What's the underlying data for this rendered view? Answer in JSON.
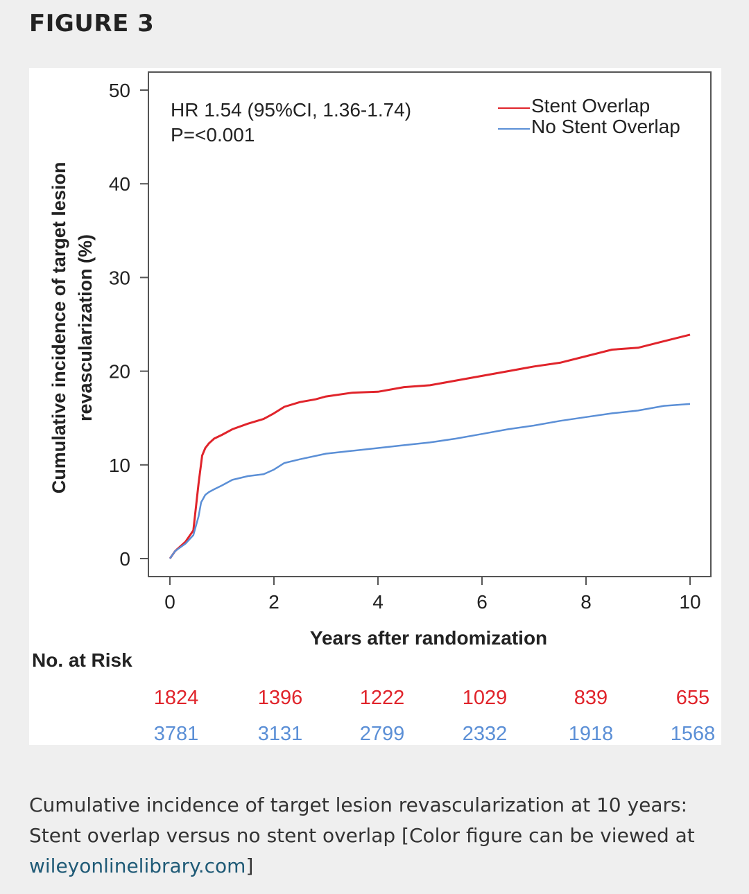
{
  "figure": {
    "title": "FIGURE 3"
  },
  "caption": {
    "text": "Cumulative incidence of target lesion revascularization at 10 years: Stent overlap versus no stent overlap [Color figure can be viewed at ",
    "link": "wileyonlinelibrary.com",
    "suffix": "]"
  },
  "chart_data": {
    "type": "line",
    "xlabel": "Years after randomization",
    "ylabel_lines": [
      "Cumulative incidence of target lesion",
      "revascularization (%)"
    ],
    "xlim": [
      0,
      10
    ],
    "ylim": [
      0,
      50
    ],
    "x_ticks": [
      "0",
      "2",
      "4",
      "6",
      "8",
      "10"
    ],
    "y_ticks": [
      "0",
      "10",
      "20",
      "30",
      "40",
      "50"
    ],
    "annotation_lines": [
      "HR 1.54 (95%CI, 1.36-1.74)",
      "P=<0.001"
    ],
    "legend_position": "top-right",
    "series": [
      {
        "name": "Stent Overlap",
        "color": "#e0242b",
        "x": [
          0,
          0.1,
          0.3,
          0.45,
          0.55,
          0.62,
          0.68,
          0.75,
          0.85,
          1.0,
          1.2,
          1.5,
          1.8,
          2.0,
          2.2,
          2.5,
          2.8,
          3.0,
          3.5,
          4.0,
          4.5,
          5.0,
          5.5,
          6.0,
          6.5,
          7.0,
          7.5,
          8.0,
          8.5,
          9.0,
          9.5,
          10.0
        ],
        "y": [
          0,
          0.8,
          1.8,
          3.0,
          8.0,
          11.0,
          11.8,
          12.3,
          12.8,
          13.2,
          13.8,
          14.4,
          14.9,
          15.5,
          16.2,
          16.7,
          17.0,
          17.3,
          17.7,
          17.8,
          18.3,
          18.5,
          19.0,
          19.5,
          20.0,
          20.5,
          20.9,
          21.6,
          22.3,
          22.5,
          23.2,
          23.9
        ]
      },
      {
        "name": "No Stent Overlap",
        "color": "#5b8fd6",
        "x": [
          0,
          0.1,
          0.3,
          0.45,
          0.55,
          0.6,
          0.68,
          0.75,
          0.85,
          1.0,
          1.2,
          1.5,
          1.8,
          2.0,
          2.2,
          2.5,
          3.0,
          3.5,
          4.0,
          4.5,
          5.0,
          5.5,
          6.0,
          6.5,
          7.0,
          7.5,
          8.0,
          8.5,
          9.0,
          9.5,
          10.0
        ],
        "y": [
          0,
          0.8,
          1.6,
          2.5,
          4.5,
          6.0,
          6.8,
          7.1,
          7.4,
          7.8,
          8.4,
          8.8,
          9.0,
          9.5,
          10.2,
          10.6,
          11.2,
          11.5,
          11.8,
          12.1,
          12.4,
          12.8,
          13.3,
          13.8,
          14.2,
          14.7,
          15.1,
          15.5,
          15.8,
          16.3,
          16.5
        ]
      }
    ],
    "risk_table": {
      "title": "No. at Risk",
      "rows": [
        {
          "name": "Stent Overlap",
          "color": "#e0242b",
          "values": [
            "1824",
            "1396",
            "1222",
            "1029",
            "839",
            "655"
          ]
        },
        {
          "name": "No Stent Overlap",
          "color": "#5b8fd6",
          "values": [
            "3781",
            "3131",
            "2799",
            "2332",
            "1918",
            "1568"
          ]
        }
      ]
    }
  }
}
